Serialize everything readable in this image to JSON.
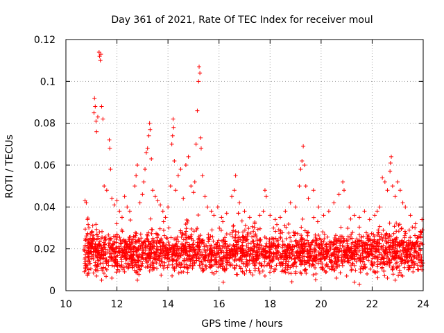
{
  "chart_data": {
    "type": "scatter",
    "title": "Day 361 of 2021, Rate Of TEC Index for receiver moul",
    "xlabel": "GPS time / hours",
    "ylabel": "ROTI / TECUs",
    "xlim": [
      10,
      24
    ],
    "ylim": [
      0,
      0.12
    ],
    "grid": true,
    "marker": "+",
    "color": "#ff0000",
    "x_ticks": [
      10,
      12,
      14,
      16,
      18,
      20,
      22,
      24
    ],
    "x_tick_labels": [
      "10",
      "12",
      "14",
      "16",
      "18",
      "20",
      "22",
      "24"
    ],
    "y_ticks": [
      0,
      0.02,
      0.04,
      0.06,
      0.08,
      0.1,
      0.12
    ],
    "y_tick_labels": [
      "0",
      "0.02",
      "0.04",
      "0.06",
      "0.08",
      "0.1",
      "0.12"
    ],
    "series": [
      {
        "name": "moul",
        "points": [
          [
            10.75,
            0.043
          ],
          [
            10.8,
            0.042
          ],
          [
            10.85,
            0.034
          ],
          [
            10.9,
            0.03
          ],
          [
            10.95,
            0.025
          ],
          [
            11.0,
            0.028
          ],
          [
            11.05,
            0.031
          ],
          [
            11.1,
            0.085
          ],
          [
            11.12,
            0.092
          ],
          [
            11.15,
            0.088
          ],
          [
            11.18,
            0.081
          ],
          [
            11.2,
            0.076
          ],
          [
            11.25,
            0.083
          ],
          [
            11.3,
            0.114
          ],
          [
            11.32,
            0.112
          ],
          [
            11.35,
            0.11
          ],
          [
            11.37,
            0.113
          ],
          [
            11.4,
            0.088
          ],
          [
            11.45,
            0.082
          ],
          [
            11.5,
            0.05
          ],
          [
            11.6,
            0.048
          ],
          [
            11.7,
            0.072
          ],
          [
            11.72,
            0.068
          ],
          [
            11.75,
            0.058
          ],
          [
            11.8,
            0.044
          ],
          [
            11.9,
            0.041
          ],
          [
            12.0,
            0.043
          ],
          [
            12.1,
            0.038
          ],
          [
            12.2,
            0.035
          ],
          [
            12.3,
            0.045
          ],
          [
            12.4,
            0.04
          ],
          [
            12.5,
            0.038
          ],
          [
            12.7,
            0.05
          ],
          [
            12.75,
            0.055
          ],
          [
            12.8,
            0.06
          ],
          [
            12.9,
            0.042
          ],
          [
            13.0,
            0.046
          ],
          [
            13.05,
            0.052
          ],
          [
            13.1,
            0.058
          ],
          [
            13.15,
            0.066
          ],
          [
            13.2,
            0.068
          ],
          [
            13.25,
            0.074
          ],
          [
            13.28,
            0.08
          ],
          [
            13.3,
            0.077
          ],
          [
            13.35,
            0.063
          ],
          [
            13.4,
            0.048
          ],
          [
            13.5,
            0.045
          ],
          [
            13.6,
            0.043
          ],
          [
            13.7,
            0.041
          ],
          [
            13.8,
            0.038
          ],
          [
            13.9,
            0.035
          ],
          [
            14.0,
            0.04
          ],
          [
            14.1,
            0.05
          ],
          [
            14.15,
            0.07
          ],
          [
            14.18,
            0.074
          ],
          [
            14.2,
            0.082
          ],
          [
            14.22,
            0.078
          ],
          [
            14.25,
            0.062
          ],
          [
            14.3,
            0.048
          ],
          [
            14.4,
            0.055
          ],
          [
            14.5,
            0.058
          ],
          [
            14.6,
            0.044
          ],
          [
            14.7,
            0.06
          ],
          [
            14.8,
            0.064
          ],
          [
            14.9,
            0.05
          ],
          [
            15.0,
            0.047
          ],
          [
            15.05,
            0.052
          ],
          [
            15.1,
            0.07
          ],
          [
            15.15,
            0.086
          ],
          [
            15.2,
            0.1
          ],
          [
            15.22,
            0.107
          ],
          [
            15.25,
            0.104
          ],
          [
            15.28,
            0.073
          ],
          [
            15.3,
            0.068
          ],
          [
            15.35,
            0.055
          ],
          [
            15.45,
            0.045
          ],
          [
            15.55,
            0.04
          ],
          [
            15.7,
            0.038
          ],
          [
            15.8,
            0.036
          ],
          [
            15.95,
            0.04
          ],
          [
            16.1,
            0.035
          ],
          [
            16.3,
            0.037
          ],
          [
            16.5,
            0.045
          ],
          [
            16.6,
            0.048
          ],
          [
            16.65,
            0.055
          ],
          [
            16.8,
            0.042
          ],
          [
            17.0,
            0.038
          ],
          [
            17.2,
            0.035
          ],
          [
            17.4,
            0.032
          ],
          [
            17.6,
            0.036
          ],
          [
            17.8,
            0.048
          ],
          [
            17.85,
            0.045
          ],
          [
            18.0,
            0.036
          ],
          [
            18.2,
            0.034
          ],
          [
            18.4,
            0.035
          ],
          [
            18.6,
            0.038
          ],
          [
            18.8,
            0.042
          ],
          [
            19.0,
            0.04
          ],
          [
            19.15,
            0.05
          ],
          [
            19.2,
            0.058
          ],
          [
            19.25,
            0.062
          ],
          [
            19.3,
            0.069
          ],
          [
            19.35,
            0.06
          ],
          [
            19.4,
            0.05
          ],
          [
            19.5,
            0.044
          ],
          [
            19.7,
            0.048
          ],
          [
            19.9,
            0.04
          ],
          [
            20.1,
            0.036
          ],
          [
            20.3,
            0.038
          ],
          [
            20.5,
            0.042
          ],
          [
            20.7,
            0.046
          ],
          [
            20.85,
            0.052
          ],
          [
            20.9,
            0.048
          ],
          [
            21.1,
            0.04
          ],
          [
            21.3,
            0.036
          ],
          [
            21.5,
            0.035
          ],
          [
            21.7,
            0.038
          ],
          [
            21.9,
            0.034
          ],
          [
            22.1,
            0.036
          ],
          [
            22.3,
            0.04
          ],
          [
            22.4,
            0.054
          ],
          [
            22.5,
            0.052
          ],
          [
            22.6,
            0.048
          ],
          [
            22.7,
            0.057
          ],
          [
            22.72,
            0.061
          ],
          [
            22.75,
            0.064
          ],
          [
            22.8,
            0.05
          ],
          [
            22.9,
            0.045
          ],
          [
            23.0,
            0.052
          ],
          [
            23.1,
            0.048
          ],
          [
            23.2,
            0.042
          ],
          [
            23.3,
            0.04
          ],
          [
            23.5,
            0.036
          ],
          [
            23.7,
            0.032
          ],
          [
            23.9,
            0.028
          ],
          [
            10.78,
            0.012
          ],
          [
            10.85,
            0.008
          ],
          [
            11.0,
            0.02
          ],
          [
            11.2,
            0.007
          ],
          [
            11.4,
            0.005
          ],
          [
            11.6,
            0.01
          ],
          [
            11.8,
            0.006
          ],
          [
            12.0,
            0.012
          ],
          [
            12.3,
            0.009
          ],
          [
            12.6,
            0.011
          ],
          [
            12.8,
            0.005
          ],
          [
            13.0,
            0.013
          ],
          [
            13.4,
            0.01
          ],
          [
            13.8,
            0.012
          ],
          [
            14.2,
            0.011
          ],
          [
            14.6,
            0.009
          ],
          [
            15.0,
            0.012
          ],
          [
            15.4,
            0.01
          ],
          [
            15.8,
            0.008
          ],
          [
            16.2,
            0.01
          ],
          [
            16.6,
            0.011
          ],
          [
            17.0,
            0.008
          ],
          [
            17.4,
            0.012
          ],
          [
            17.8,
            0.007
          ],
          [
            18.2,
            0.01
          ],
          [
            18.6,
            0.011
          ],
          [
            19.0,
            0.009
          ],
          [
            19.4,
            0.01
          ],
          [
            19.8,
            0.008
          ],
          [
            20.2,
            0.009
          ],
          [
            20.6,
            0.006
          ],
          [
            21.0,
            0.007
          ],
          [
            21.3,
            0.004
          ],
          [
            21.5,
            0.003
          ],
          [
            21.8,
            0.008
          ],
          [
            22.2,
            0.009
          ],
          [
            22.6,
            0.006
          ],
          [
            22.9,
            0.005
          ],
          [
            23.2,
            0.007
          ],
          [
            23.6,
            0.009
          ],
          [
            23.95,
            0.012
          ]
        ]
      }
    ]
  }
}
